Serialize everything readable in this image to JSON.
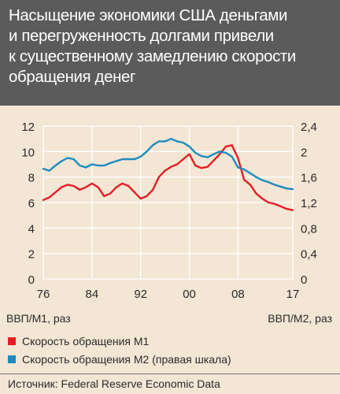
{
  "header": {
    "title": "Насыщение экономики США деньгами\nи перегруженность долгами привели\nк существенному замедлению скорости\nобращения денег"
  },
  "colors": {
    "m1": "#e31e24",
    "m2": "#1e8bbf",
    "grid": "#ffffff",
    "header_bg": "#5b5b5b",
    "page_bg": "#f3e6d4"
  },
  "chart_data": {
    "type": "line",
    "x_ticks": [
      "76",
      "84",
      "92",
      "00",
      "08",
      "17"
    ],
    "xlim": [
      1976,
      2017
    ],
    "y_left": {
      "ticks": [
        "0",
        "2",
        "4",
        "6",
        "8",
        "10",
        "12"
      ],
      "ylim": [
        0,
        12
      ],
      "label": "ВВП/М1, раз"
    },
    "y_right": {
      "ticks": [
        "0",
        "0,4",
        "0,8",
        "1,2",
        "1,6",
        "2",
        "2,4"
      ],
      "ylim": [
        0,
        2.4
      ],
      "label": "ВВП/М2, раз"
    },
    "grid": true,
    "legend_position": "bottom",
    "series": [
      {
        "name": "Скорость обращения М1",
        "axis": "left",
        "x": [
          1976,
          1977,
          1978,
          1979,
          1980,
          1981,
          1982,
          1983,
          1984,
          1985,
          1986,
          1987,
          1988,
          1989,
          1990,
          1991,
          1992,
          1993,
          1994,
          1995,
          1996,
          1997,
          1998,
          1999,
          2000,
          2001,
          2002,
          2003,
          2004,
          2005,
          2006,
          2007,
          2008,
          2009,
          2010,
          2011,
          2012,
          2013,
          2014,
          2015,
          2016,
          2017
        ],
        "y": [
          6.2,
          6.4,
          6.8,
          7.2,
          7.4,
          7.3,
          7.0,
          7.2,
          7.5,
          7.2,
          6.5,
          6.7,
          7.2,
          7.5,
          7.3,
          6.8,
          6.3,
          6.5,
          7.0,
          8.0,
          8.5,
          8.8,
          9.0,
          9.4,
          9.8,
          8.9,
          8.7,
          8.8,
          9.3,
          9.8,
          10.4,
          10.5,
          9.5,
          7.8,
          7.4,
          6.7,
          6.3,
          6.0,
          5.9,
          5.7,
          5.5,
          5.4
        ]
      },
      {
        "name": "Скорость обращения М2 (правая шкала)",
        "axis": "right",
        "x": [
          1976,
          1977,
          1978,
          1979,
          1980,
          1981,
          1982,
          1983,
          1984,
          1985,
          1986,
          1987,
          1988,
          1989,
          1990,
          1991,
          1992,
          1993,
          1994,
          1995,
          1996,
          1997,
          1998,
          1999,
          2000,
          2001,
          2002,
          2003,
          2004,
          2005,
          2006,
          2007,
          2008,
          2009,
          2010,
          2011,
          2012,
          2013,
          2014,
          2015,
          2016,
          2017
        ],
        "y": [
          1.73,
          1.7,
          1.78,
          1.85,
          1.9,
          1.88,
          1.78,
          1.75,
          1.8,
          1.78,
          1.78,
          1.82,
          1.85,
          1.88,
          1.88,
          1.88,
          1.92,
          2.0,
          2.1,
          2.16,
          2.16,
          2.2,
          2.16,
          2.14,
          2.08,
          1.98,
          1.93,
          1.91,
          1.96,
          2.0,
          1.98,
          1.92,
          1.75,
          1.72,
          1.66,
          1.6,
          1.55,
          1.52,
          1.48,
          1.45,
          1.42,
          1.41
        ]
      }
    ]
  },
  "source": "Источник: Federal Reserve Economic Data"
}
